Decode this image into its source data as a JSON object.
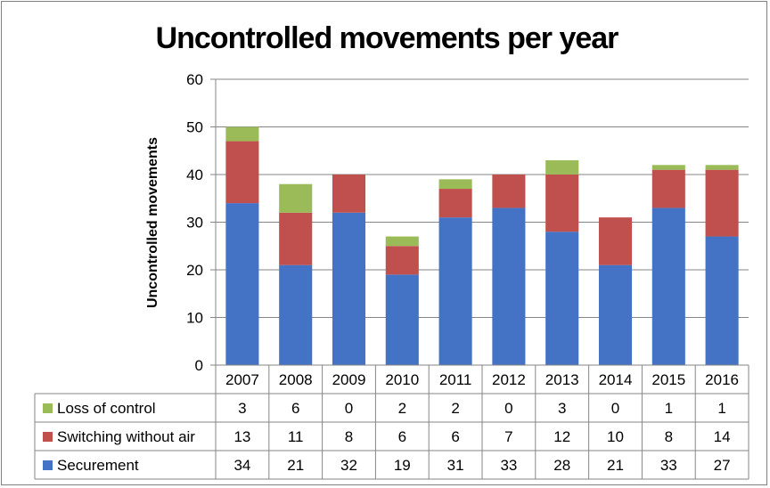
{
  "chart_data": {
    "type": "bar",
    "stacked": true,
    "title": "Uncontrolled movements per year",
    "ylabel": "Uncontrolled movements",
    "ylim": [
      0,
      60
    ],
    "yticks": [
      0,
      10,
      20,
      30,
      40,
      50,
      60
    ],
    "grid": true,
    "legend": "data-table",
    "categories": [
      "2007",
      "2008",
      "2009",
      "2010",
      "2011",
      "2012",
      "2013",
      "2014",
      "2015",
      "2016"
    ],
    "series": [
      {
        "name": "Securement",
        "color": "#4472C4",
        "values": [
          34,
          21,
          32,
          19,
          31,
          33,
          28,
          21,
          33,
          27
        ]
      },
      {
        "name": "Switching without air",
        "color": "#C0504D",
        "values": [
          13,
          11,
          8,
          6,
          6,
          7,
          12,
          10,
          8,
          14
        ]
      },
      {
        "name": "Loss of control",
        "color": "#9BBB59",
        "values": [
          3,
          6,
          0,
          2,
          2,
          0,
          3,
          0,
          1,
          1
        ]
      }
    ]
  }
}
